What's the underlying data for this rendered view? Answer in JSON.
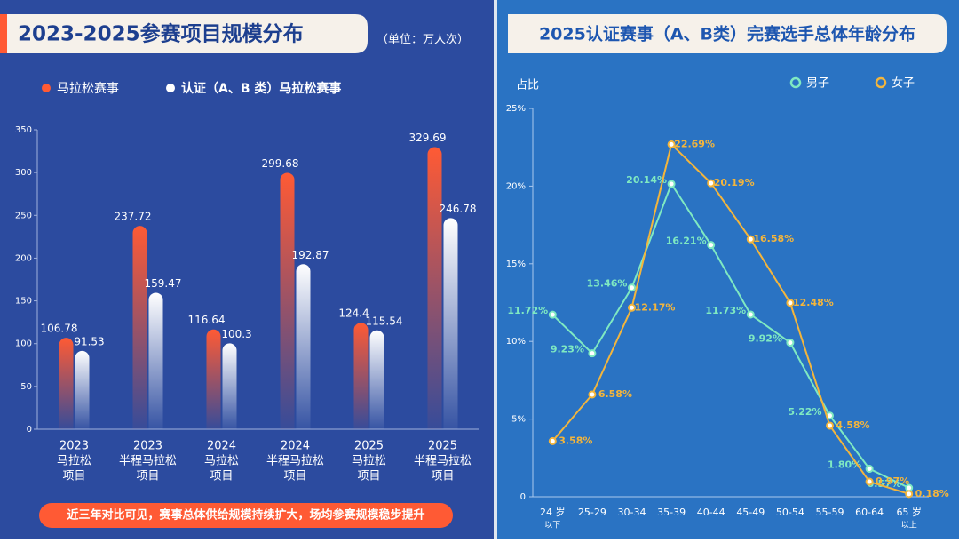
{
  "chart_data": [
    {
      "type": "bar",
      "title": "2023-2025参赛项目规模分布",
      "unit": "（单位：万人次）",
      "categories": [
        [
          "2023",
          "马拉松",
          "项目"
        ],
        [
          "2023",
          "半程马拉松",
          "项目"
        ],
        [
          "2024",
          "马拉松",
          "项目"
        ],
        [
          "2024",
          "半程马拉松",
          "项目"
        ],
        [
          "2025",
          "马拉松",
          "项目"
        ],
        [
          "2025",
          "半程马拉松",
          "项目"
        ]
      ],
      "series": [
        {
          "name": "马拉松赛事",
          "color": "#ff5a34",
          "values": [
            106.78,
            237.72,
            116.64,
            299.68,
            124.4,
            329.69
          ]
        },
        {
          "name": "认证（A、B 类）马拉松赛事",
          "color": "#ffffff",
          "values": [
            91.53,
            159.47,
            100.3,
            192.87,
            115.54,
            246.78
          ]
        }
      ],
      "ylim": [
        0,
        350
      ],
      "yticks": [
        0,
        50,
        100,
        150,
        200,
        250,
        300,
        350
      ],
      "note": "近三年对比可见，赛事总体供给规模持续扩大，场均参赛规模稳步提升"
    },
    {
      "type": "line",
      "title": "2025认证赛事（A、B类）完赛选手总体年龄分布",
      "y_label": "占比",
      "categories": [
        [
          "24 岁",
          "以下"
        ],
        [
          "25-29"
        ],
        [
          "30-34"
        ],
        [
          "35-39"
        ],
        [
          "40-44"
        ],
        [
          "45-49"
        ],
        [
          "50-54"
        ],
        [
          "55-59"
        ],
        [
          "60-64"
        ],
        [
          "65 岁",
          "以上"
        ]
      ],
      "series": [
        {
          "name": "男子",
          "color": "#7fe9c2",
          "values": [
            11.72,
            9.23,
            13.46,
            20.14,
            16.21,
            11.73,
            9.92,
            5.22,
            1.8,
            0.57
          ],
          "value_labels": [
            "11.72%",
            "9.23%",
            "13.46%",
            "20.14%",
            "16.21%",
            "11.73%",
            "9.92%",
            "5.22%",
            "1.80%",
            "0.57%"
          ]
        },
        {
          "name": "女子",
          "color": "#f3b53c",
          "values": [
            3.58,
            6.58,
            12.17,
            22.69,
            20.19,
            16.58,
            12.48,
            4.58,
            0.97,
            0.18
          ],
          "value_labels": [
            "3.58%",
            "6.58%",
            "12.17%",
            "22.69%",
            "20.19%",
            "16.58%",
            "12.48%",
            "4.58%",
            "0.97%",
            "0.18%"
          ]
        }
      ],
      "ylim": [
        0,
        25
      ],
      "yticks": [
        0,
        {
          "value": 5,
          "label": "5%"
        },
        {
          "value": 10,
          "label": "10%"
        },
        {
          "value": 15,
          "label": "15%"
        },
        {
          "value": 20,
          "label": "20%"
        },
        {
          "value": 25,
          "label": "25%"
        }
      ]
    }
  ]
}
